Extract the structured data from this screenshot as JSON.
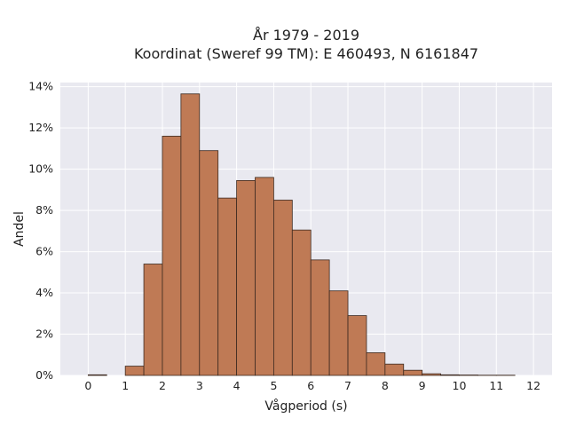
{
  "chart_data": {
    "type": "bar",
    "title_line1": "År 1979 - 2019",
    "title_line2": "Koordinat (Sweref 99 TM): E 460493, N 6161847",
    "xlabel": "Vågperiod (s)",
    "ylabel": "Andel",
    "xlim": [
      -0.75,
      12.5
    ],
    "ylim": [
      0,
      0.142
    ],
    "bin_width": 0.5,
    "bin_starts": [
      0,
      0.5,
      1,
      1.5,
      2,
      2.5,
      3,
      3.5,
      4,
      4.5,
      5,
      5.5,
      6,
      6.5,
      7,
      7.5,
      8,
      8.5,
      9,
      9.5,
      10,
      10.5,
      11,
      11.5
    ],
    "values": [
      0.0003,
      0,
      0.0045,
      0.054,
      0.116,
      0.1365,
      0.109,
      0.086,
      0.0945,
      0.096,
      0.085,
      0.0705,
      0.056,
      0.041,
      0.029,
      0.011,
      0.0055,
      0.0025,
      0.0008,
      0.0003,
      0.0002,
      0.0001,
      0.0001,
      0
    ],
    "x_ticks": [
      0,
      1,
      2,
      3,
      4,
      5,
      6,
      7,
      8,
      9,
      10,
      11,
      12
    ],
    "x_tick_labels": [
      "0",
      "1",
      "2",
      "3",
      "4",
      "5",
      "6",
      "7",
      "8",
      "9",
      "10",
      "11",
      "12"
    ],
    "y_ticks": [
      0,
      0.02,
      0.04,
      0.06,
      0.08,
      0.1,
      0.12,
      0.14
    ],
    "y_tick_labels": [
      "0%",
      "2%",
      "4%",
      "6%",
      "8%",
      "10%",
      "12%",
      "14%"
    ],
    "grid": true,
    "colors": {
      "bar_fill": "#bf7a55",
      "bar_stroke": "#3d2a20",
      "plot_background": "#e9e9f0",
      "grid": "#ffffff"
    }
  }
}
